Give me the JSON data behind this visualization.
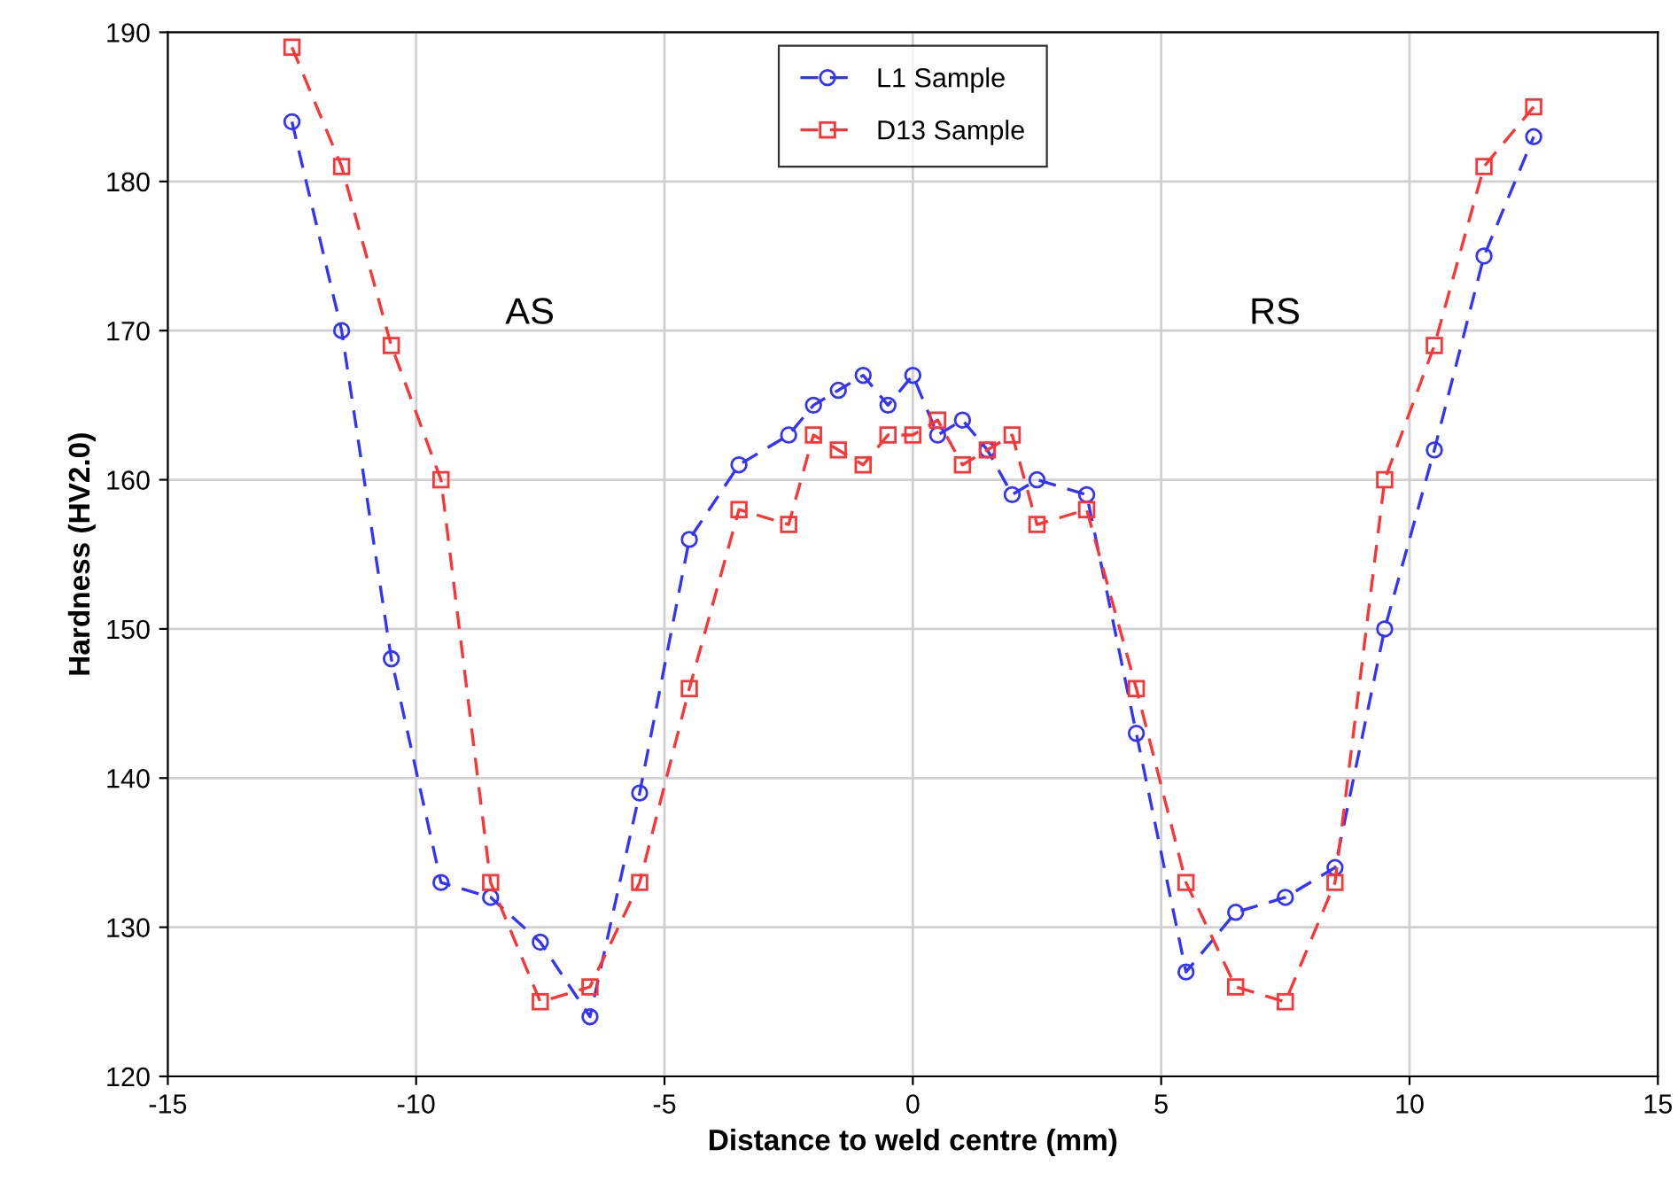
{
  "chart_data": {
    "type": "line",
    "xlabel": "Distance to weld centre (mm)",
    "ylabel": "Hardness (HV2.0)",
    "xlim": [
      -15,
      15
    ],
    "xticks": [
      -15,
      -10,
      -5,
      0,
      5,
      10,
      15
    ],
    "ylim": [
      120,
      190
    ],
    "yticks": [
      120,
      130,
      140,
      150,
      160,
      170,
      180,
      190
    ],
    "grid": true,
    "legend": "top",
    "line_style": "dashed",
    "annotations": [
      "AS",
      "RS"
    ],
    "series": [
      {
        "name": "L1 Sample",
        "color": "#3333ff",
        "marker": "circle",
        "x": [
          -12.5,
          -11.5,
          -10.5,
          -9.5,
          -8.5,
          -7.5,
          -6.5,
          -5.5,
          -4.5,
          -3.5,
          -2.5,
          -2,
          -1.5,
          -1,
          -0.5,
          0,
          0.5,
          1,
          1.5,
          2,
          2.5,
          3.5,
          4.5,
          5.5,
          6.5,
          7.5,
          8.5,
          9.5,
          10.5,
          11.5,
          12.5
        ],
        "values": [
          184,
          170,
          148,
          133,
          132,
          129,
          124,
          139,
          156,
          161,
          163,
          165,
          166,
          167,
          165,
          167,
          163,
          164,
          162,
          159,
          160,
          159,
          143,
          127,
          131,
          132,
          134,
          150,
          162,
          175,
          183
        ]
      },
      {
        "name": "D13 Sample",
        "color": "#ff3333",
        "marker": "square",
        "x": [
          -12.5,
          -11.5,
          -10.5,
          -9.5,
          -8.5,
          -7.5,
          -6.5,
          -5.5,
          -4.5,
          -3.5,
          -2.5,
          -2,
          -1.5,
          -1,
          -0.5,
          0,
          0.5,
          1,
          1.5,
          2,
          2.5,
          3.5,
          4.5,
          5.5,
          6.5,
          7.5,
          8.5,
          9.5,
          10.5,
          11.5,
          12.5
        ],
        "values": [
          189,
          181,
          169,
          160,
          133,
          125,
          126,
          133,
          146,
          158,
          157,
          163,
          162,
          161,
          163,
          163,
          164,
          161,
          162,
          163,
          157,
          158,
          146,
          133,
          126,
          125,
          133,
          160,
          169,
          181,
          185
        ]
      }
    ]
  }
}
